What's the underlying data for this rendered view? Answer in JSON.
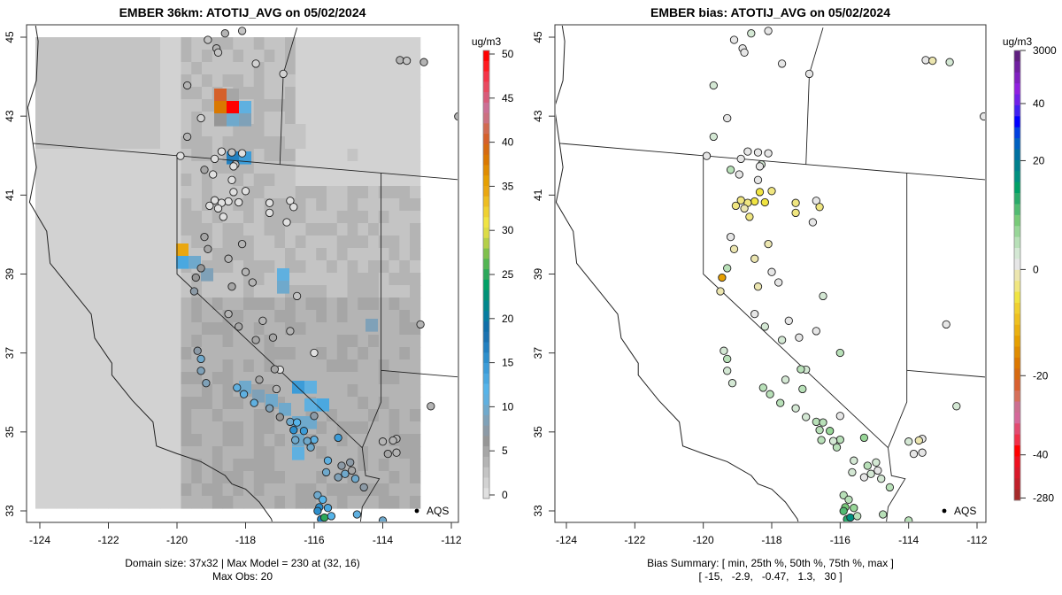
{
  "panels": [
    {
      "id": "model",
      "title": "EMBER 36km: ATOTIJ_AVG on 05/02/2024",
      "xticks": [
        "-124",
        "-122",
        "-120",
        "-118",
        "-116",
        "-114",
        "-112"
      ],
      "yticks": [
        "45",
        "43",
        "41",
        "39",
        "37",
        "35",
        "33"
      ],
      "caption_line1": "Domain size: 37x32 | Max Model = 230 at (32, 16)",
      "caption_line2": "Max Obs: 20",
      "network_label": "AQS",
      "colorbar": {
        "units": "ug/m3",
        "ticks": [
          "50",
          "45",
          "40",
          "35",
          "30",
          "25",
          "20",
          "15",
          "10",
          "5",
          "0"
        ],
        "range": [
          0,
          50
        ],
        "colors": [
          "#e0e0e0",
          "#d2d2d2",
          "#c4c4c4",
          "#b4b4b4",
          "#a6a6a6",
          "#969696",
          "#8c9aa6",
          "#7fa1b8",
          "#6fa9cc",
          "#5fb0e0",
          "#56b4e9",
          "#4aa8e0",
          "#3c9cd8",
          "#2d8fcc",
          "#2280c0",
          "#1a72b0",
          "#0f6ea8",
          "#057ca0",
          "#00868c",
          "#009177",
          "#00a066",
          "#2ca85a",
          "#52b552",
          "#7fc04c",
          "#b4cf48",
          "#dcdc45",
          "#f0e442",
          "#efd130",
          "#edbd20",
          "#eaa710",
          "#e69f00",
          "#e08c00",
          "#da7800",
          "#d66a10",
          "#d5602a",
          "#d16a50",
          "#cc7080",
          "#cc6f95",
          "#d85b7a",
          "#e84a60",
          "#f43448",
          "#ff1a20",
          "#ff0000"
        ]
      },
      "chart_data": {
        "type": "heatmap",
        "title": "EMBER 36km: ATOTIJ_AVG on 05/02/2024",
        "xlabel": "",
        "ylabel": "",
        "xlim": [
          -124.3,
          -111.7
        ],
        "ylim": [
          32.7,
          45.35
        ],
        "units": "ug/m3",
        "domain_size": "37x32",
        "max_model": 230,
        "max_obs": 20
      }
    },
    {
      "id": "bias",
      "title": "EMBER bias: ATOTIJ_AVG on 05/02/2024",
      "xticks": [
        "-124",
        "-122",
        "-120",
        "-118",
        "-116",
        "-114",
        "-112"
      ],
      "yticks": [
        "45",
        "43",
        "41",
        "39",
        "37",
        "35",
        "33"
      ],
      "caption_line1": "Bias Summary: [ min, 25th %, 50th %, 75th %, max ]",
      "caption_line2": "[ -15,   -2.9,   -0.47,   1.3,   30 ]",
      "network_label": "AQS",
      "colorbar": {
        "units": "ug/m3",
        "ticks": [
          "3000",
          "40",
          "20",
          "0",
          "-20",
          "-40",
          "-280"
        ],
        "colors": [
          "#a52a2a",
          "#c0202a",
          "#d8182a",
          "#ee1020",
          "#ff0000",
          "#f03048",
          "#e24a70",
          "#d5689a",
          "#cc6f90",
          "#d6705a",
          "#d86030",
          "#d66a10",
          "#dc7800",
          "#e08c00",
          "#e69f00",
          "#eab010",
          "#eec020",
          "#f0d030",
          "#f0e442",
          "#f0e680",
          "#ece6b0",
          "#e6e6e6",
          "#d4e8d4",
          "#b8e0b8",
          "#98d698",
          "#78ca78",
          "#52bb72",
          "#2aaa6a",
          "#00a066",
          "#009080",
          "#00808c",
          "#0070a0",
          "#0060c0",
          "#0040e0",
          "#0000ff",
          "#4020f0",
          "#7020e8",
          "#9020e0",
          "#8020c0",
          "#7020a0",
          "#602080"
        ]
      },
      "chart_data": {
        "type": "scatter",
        "title": "EMBER bias: ATOTIJ_AVG on 05/02/2024",
        "xlim": [
          -124.3,
          -111.7
        ],
        "ylim": [
          32.7,
          45.35
        ],
        "units": "ug/m3",
        "bias_summary": {
          "min": -15,
          "p25": -2.9,
          "p50": -0.47,
          "p75": 1.3,
          "max": 30
        }
      }
    }
  ]
}
